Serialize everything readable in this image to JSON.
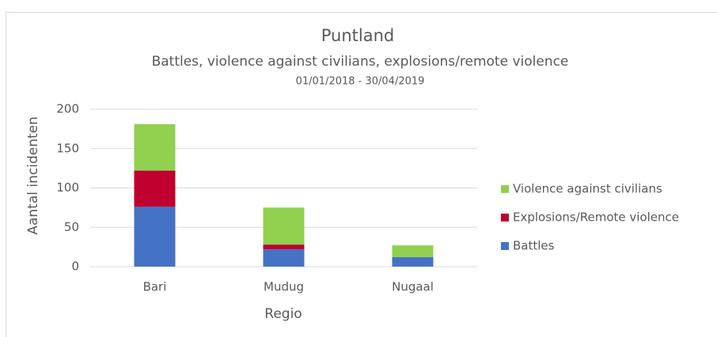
{
  "chart_data": {
    "type": "stacked_bar",
    "title": "Puntland",
    "subtitle": "Battles, violence against civilians, explosions/remote violence",
    "date_range": "01/01/2018 - 30/04/2019",
    "x_label": "Regio",
    "y_label": "Aantal incidenten",
    "categories": [
      "Bari",
      "Mudug",
      "Nugaal"
    ],
    "series": [
      {
        "name": "Battles",
        "color": "#4472c4",
        "values": [
          76,
          22,
          12
        ]
      },
      {
        "name": "Explosions/Remote violence",
        "color": "#c0002f",
        "values": [
          46,
          6,
          0
        ]
      },
      {
        "name": "Violence against civilians",
        "color": "#92d050",
        "values": [
          59,
          47,
          15
        ]
      }
    ],
    "ylim": [
      0,
      200
    ],
    "yticks": [
      0,
      50,
      100,
      150,
      200
    ],
    "grid": true,
    "legend": "right"
  }
}
